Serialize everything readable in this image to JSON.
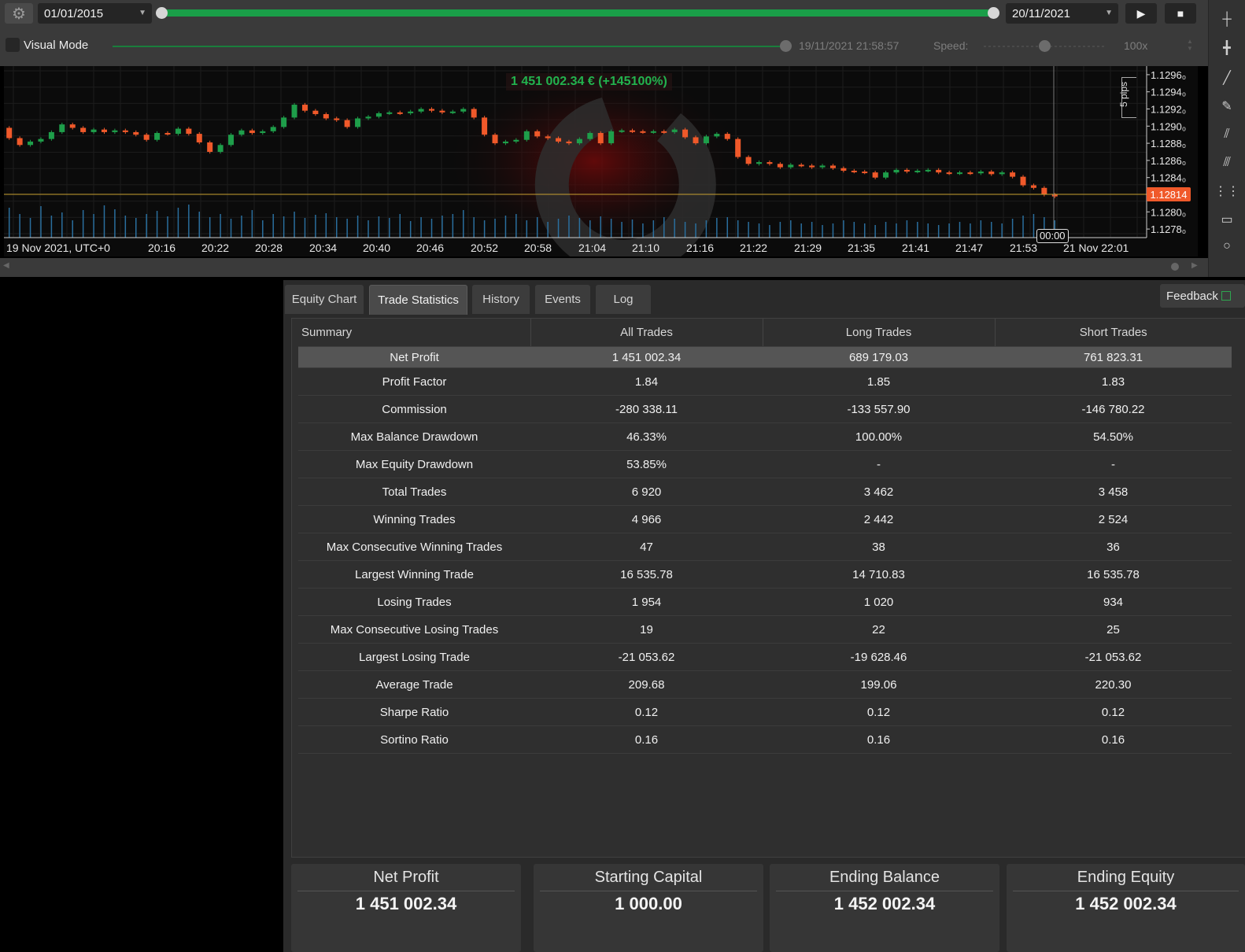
{
  "toolbar": {
    "start_date": "01/01/2015",
    "end_date": "20/11/2021",
    "play_label": "▶",
    "stop_label": "■",
    "gear_icon": "gear-icon"
  },
  "visual_mode": {
    "label": "Visual Mode",
    "checked": false,
    "timestamp": "19/11/2021 21:58:57",
    "speed_label": "Speed:",
    "speed_value": "100x"
  },
  "chart": {
    "equity_banner": "1 451 002.34 € (+145100%)",
    "pips_label": "5 pips",
    "current_price": "1.12814",
    "cursor_time": "00:00",
    "price_ticks": [
      "1.1296₀",
      "1.1294₀",
      "1.1292₀",
      "1.1290₀",
      "1.1288₀",
      "1.1286₀",
      "1.1284₀",
      "1.1280₀",
      "1.1278₀"
    ],
    "time_ticks": [
      "19 Nov 2021, UTC+0",
      "20:16",
      "20:22",
      "20:28",
      "20:34",
      "20:40",
      "20:46",
      "20:52",
      "20:58",
      "21:04",
      "21:10",
      "21:16",
      "21:22",
      "21:29",
      "21:35",
      "21:41",
      "21:47",
      "21:53",
      "21 Nov 22:01"
    ],
    "colors": {
      "up": "#1e9e4a",
      "down": "#f0592a",
      "price_line": "#c8a032"
    }
  },
  "chart_data": {
    "type": "candlestick",
    "title": "",
    "ylim": [
      1.1277,
      1.1297
    ],
    "y_ticks": [
      1.1296,
      1.1294,
      1.1292,
      1.129,
      1.1288,
      1.1286,
      1.1284,
      1.128,
      1.1278
    ],
    "current_price": 1.12814,
    "close": [
      1.12886,
      1.12878,
      1.12882,
      1.12885,
      1.12893,
      1.12902,
      1.12898,
      1.12893,
      1.12896,
      1.12893,
      1.12895,
      1.12893,
      1.1289,
      1.12884,
      1.12892,
      1.12891,
      1.12897,
      1.12891,
      1.12881,
      1.1287,
      1.12878,
      1.1289,
      1.12895,
      1.12892,
      1.12894,
      1.12899,
      1.1291,
      1.12925,
      1.12918,
      1.12914,
      1.12909,
      1.12907,
      1.12899,
      1.12909,
      1.12911,
      1.12915,
      1.12916,
      1.12915,
      1.12917,
      1.1292,
      1.12918,
      1.12916,
      1.12917,
      1.1292,
      1.1291,
      1.1289,
      1.1288,
      1.12882,
      1.12884,
      1.12894,
      1.12888,
      1.12886,
      1.12882,
      1.1288,
      1.12885,
      1.12892,
      1.1288,
      1.12894,
      1.12895,
      1.12894,
      1.12893,
      1.12894,
      1.12893,
      1.12896,
      1.12887,
      1.1288,
      1.12888,
      1.12891,
      1.12885,
      1.12864,
      1.12856,
      1.12858,
      1.12856,
      1.12852,
      1.12855,
      1.12854,
      1.12852,
      1.12854,
      1.12851,
      1.12848,
      1.12847,
      1.12846,
      1.1284,
      1.12846,
      1.12849,
      1.12847,
      1.12848,
      1.12849,
      1.12846,
      1.12845,
      1.12846,
      1.12845,
      1.12847,
      1.12844,
      1.12846,
      1.12841,
      1.12831,
      1.12828,
      1.1282,
      1.12818
    ],
    "volume": [
      38,
      30,
      25,
      40,
      28,
      32,
      22,
      35,
      30,
      41,
      36,
      28,
      25,
      30,
      34,
      27,
      38,
      42,
      33,
      26,
      30,
      24,
      28,
      35,
      22,
      30,
      27,
      33,
      25,
      29,
      31,
      26,
      24,
      28,
      22,
      27,
      25,
      30,
      21,
      26,
      24,
      28,
      30,
      35,
      26,
      22,
      24,
      28,
      30,
      22,
      26,
      20,
      24,
      28,
      25,
      22,
      27,
      24,
      20,
      23,
      18,
      22,
      26,
      24,
      20,
      18,
      22,
      25,
      26,
      22,
      20,
      18,
      16,
      20,
      22,
      18,
      20,
      16,
      18,
      22,
      20,
      18,
      16,
      20,
      18,
      22,
      20,
      18,
      16,
      18,
      20,
      18,
      22,
      20,
      18,
      24,
      28,
      30,
      26,
      22
    ]
  },
  "tabs": [
    {
      "label": "Equity Chart"
    },
    {
      "label": "Trade Statistics"
    },
    {
      "label": "History"
    },
    {
      "label": "Events"
    },
    {
      "label": "Log"
    }
  ],
  "feedback_label": "Feedback",
  "stats": {
    "headers": [
      "Summary",
      "All Trades",
      "Long Trades",
      "Short Trades"
    ],
    "rows": [
      [
        "Net Profit",
        "1 451 002.34",
        "689 179.03",
        "761 823.31"
      ],
      [
        "Profit Factor",
        "1.84",
        "1.85",
        "1.83"
      ],
      [
        "Commission",
        "-280 338.11",
        "-133 557.90",
        "-146 780.22"
      ],
      [
        "Max Balance Drawdown",
        "46.33%",
        "100.00%",
        "54.50%"
      ],
      [
        "Max Equity Drawdown",
        "53.85%",
        "-",
        "-"
      ],
      [
        "Total Trades",
        "6 920",
        "3 462",
        "3 458"
      ],
      [
        "Winning Trades",
        "4 966",
        "2 442",
        "2 524"
      ],
      [
        "Max Consecutive Winning Trades",
        "47",
        "38",
        "36"
      ],
      [
        "Largest Winning Trade",
        "16 535.78",
        "14 710.83",
        "16 535.78"
      ],
      [
        "Losing Trades",
        "1 954",
        "1 020",
        "934"
      ],
      [
        "Max Consecutive Losing Trades",
        "19",
        "22",
        "25"
      ],
      [
        "Largest Losing Trade",
        "-21 053.62",
        "-19 628.46",
        "-21 053.62"
      ],
      [
        "Average Trade",
        "209.68",
        "199.06",
        "220.30"
      ],
      [
        "Sharpe Ratio",
        "0.12",
        "0.12",
        "0.12"
      ],
      [
        "Sortino Ratio",
        "0.16",
        "0.16",
        "0.16"
      ]
    ]
  },
  "cards": [
    {
      "label": "Net Profit",
      "value": "1 451 002.34"
    },
    {
      "label": "Starting Capital",
      "value": "1 000.00"
    },
    {
      "label": "Ending Balance",
      "value": "1 452 002.34"
    },
    {
      "label": "Ending Equity",
      "value": "1 452 002.34"
    }
  ],
  "tools": [
    "crosshair-icon",
    "add-line-icon",
    "trendline-icon",
    "brush-icon",
    "fibonacci-icon",
    "parallel-lines-icon",
    "grid-icon",
    "rectangle-icon",
    "ellipse-icon"
  ]
}
